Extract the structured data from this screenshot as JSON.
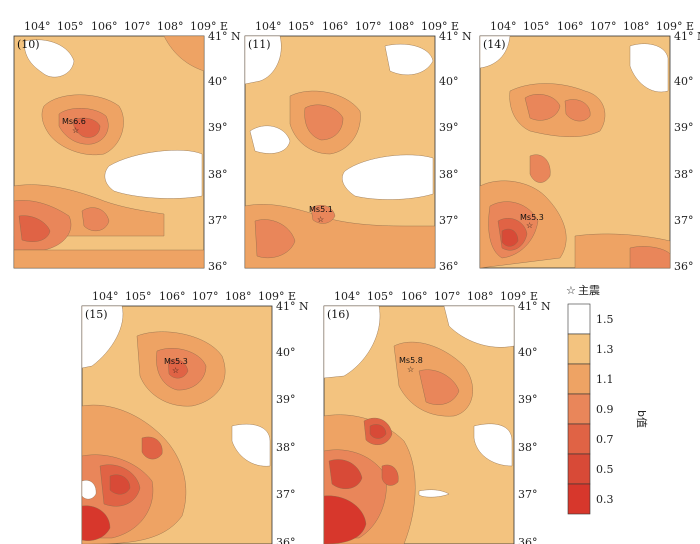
{
  "figure": {
    "panels": [
      {
        "id": "p10",
        "label": "(10)",
        "mainshock": "Ms6.6",
        "lon_ticks": [
          "104°",
          "105°",
          "106°",
          "107°",
          "108°",
          "109° E"
        ],
        "lat_ticks": [
          "41° N",
          "40°",
          "39°",
          "38°",
          "37°",
          "36°"
        ]
      },
      {
        "id": "p11",
        "label": "(11)",
        "mainshock": "Ms5.1",
        "lon_ticks": [
          "104°",
          "105°",
          "106°",
          "107°",
          "108°",
          "109° E"
        ],
        "lat_ticks": [
          "41° N",
          "40°",
          "39°",
          "38°",
          "37°",
          "36°"
        ]
      },
      {
        "id": "p14",
        "label": "(14)",
        "mainshock": "Ms5.3",
        "lon_ticks": [
          "104°",
          "105°",
          "106°",
          "107°",
          "108°",
          "109° E"
        ],
        "lat_ticks": [
          "41° N",
          "40°",
          "39°",
          "38°",
          "37°",
          "36°"
        ]
      },
      {
        "id": "p15",
        "label": "(15)",
        "mainshock": "Ms5.3",
        "lon_ticks": [
          "104°",
          "105°",
          "106°",
          "107°",
          "108°",
          "109° E"
        ],
        "lat_ticks": [
          "41° N",
          "40°",
          "39°",
          "38°",
          "37°",
          "36°"
        ]
      },
      {
        "id": "p16",
        "label": "(16)",
        "mainshock": "Ms5.8",
        "lon_ticks": [
          "104°",
          "105°",
          "106°",
          "107°",
          "108°",
          "109° E"
        ],
        "lat_ticks": [
          "41° N",
          "40°",
          "39°",
          "38°",
          "37°",
          "36°"
        ]
      }
    ],
    "legend": {
      "symbol": "☆",
      "symbol_label": "主震",
      "variable_label": "b值",
      "levels": [
        "1.5",
        "1.3",
        "1.1",
        "0.9",
        "0.7",
        "0.5",
        "0.3"
      ]
    },
    "colors": {
      "c15": "#ffffff",
      "c13": "#f3c37f",
      "c11": "#eea364",
      "c09": "#e9865a",
      "c07": "#e06345",
      "c05": "#d84a37",
      "c03": "#d7372c",
      "contour": "#8a6a4a"
    }
  }
}
